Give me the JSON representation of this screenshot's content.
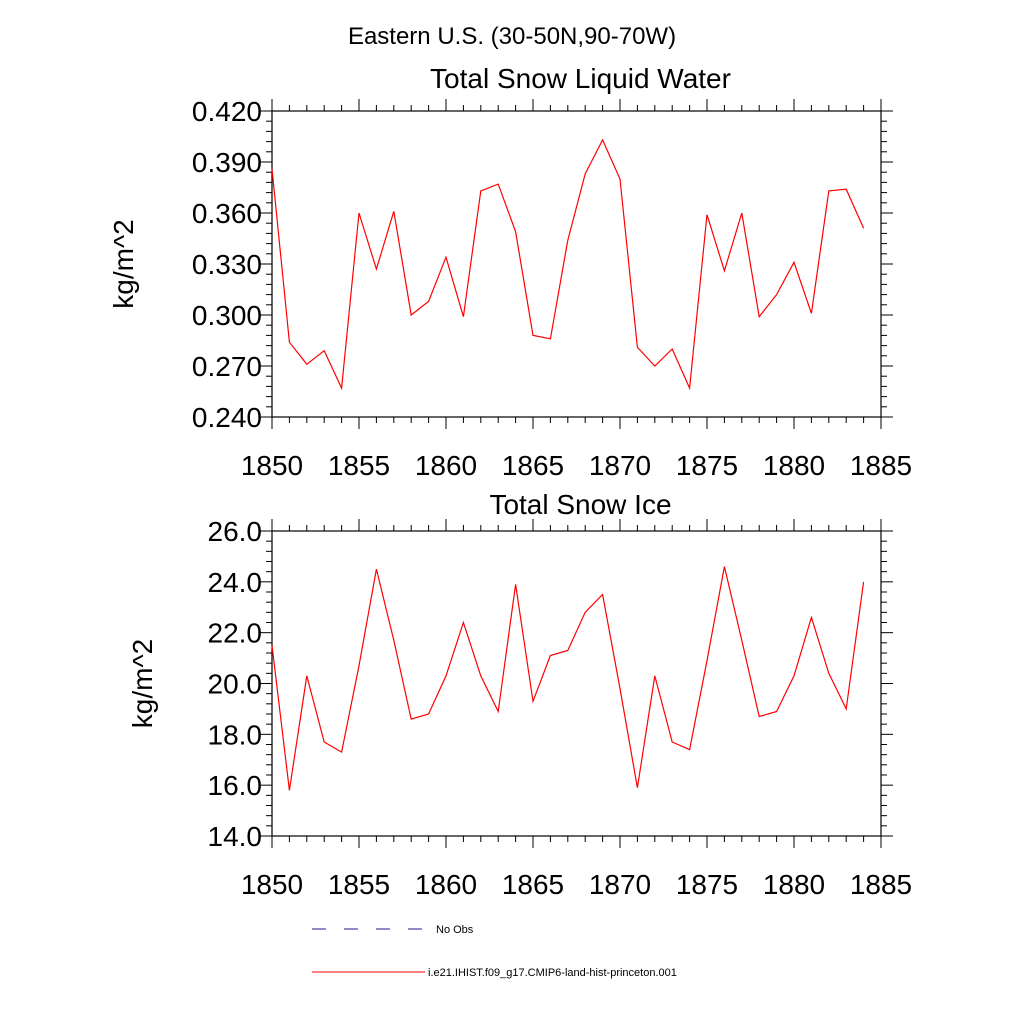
{
  "figure_title": "Eastern U.S. (30-50N,90-70W)",
  "legend": [
    {
      "label": "No Obs",
      "color": "#1a1a8c",
      "style": "dashed"
    },
    {
      "label": "i.e21.IHIST.f09_g17.CMIP6-land-hist-princeton.001",
      "color": "#ff0000",
      "style": "solid"
    }
  ],
  "chart_data": [
    {
      "type": "line",
      "title": "Total Snow Liquid Water",
      "xlabel": "",
      "ylabel": "kg/m^2",
      "xlim": [
        1850,
        1885
      ],
      "ylim": [
        0.24,
        0.42
      ],
      "x_ticks": [
        1850,
        1855,
        1860,
        1865,
        1870,
        1875,
        1880,
        1885
      ],
      "y_ticks": [
        "0.240",
        "0.270",
        "0.300",
        "0.330",
        "0.360",
        "0.390",
        "0.420"
      ],
      "grid": false,
      "series": [
        {
          "color": "#ff0000",
          "x": [
            1850,
            1851,
            1852,
            1853,
            1854,
            1855,
            1856,
            1857,
            1858,
            1859,
            1860,
            1861,
            1862,
            1863,
            1864,
            1865,
            1866,
            1867,
            1868,
            1869,
            1870,
            1871,
            1872,
            1873,
            1874,
            1875,
            1876,
            1877,
            1878,
            1879,
            1880,
            1881,
            1882,
            1883,
            1884
          ],
          "values": [
            0.386,
            0.284,
            0.271,
            0.279,
            0.257,
            0.36,
            0.327,
            0.361,
            0.3,
            0.308,
            0.334,
            0.299,
            0.373,
            0.377,
            0.349,
            0.288,
            0.286,
            0.344,
            0.383,
            0.403,
            0.38,
            0.281,
            0.27,
            0.28,
            0.257,
            0.359,
            0.326,
            0.36,
            0.299,
            0.312,
            0.331,
            0.301,
            0.373,
            0.374,
            0.351
          ]
        }
      ]
    },
    {
      "type": "line",
      "title": "Total Snow Ice",
      "xlabel": "",
      "ylabel": "kg/m^2",
      "xlim": [
        1850,
        1885
      ],
      "ylim": [
        14.0,
        26.0
      ],
      "x_ticks": [
        1850,
        1855,
        1860,
        1865,
        1870,
        1875,
        1880,
        1885
      ],
      "y_ticks": [
        "14.0",
        "16.0",
        "18.0",
        "20.0",
        "22.0",
        "24.0",
        "26.0"
      ],
      "grid": false,
      "series": [
        {
          "color": "#ff0000",
          "x": [
            1850,
            1851,
            1852,
            1853,
            1854,
            1855,
            1856,
            1857,
            1858,
            1859,
            1860,
            1861,
            1862,
            1863,
            1864,
            1865,
            1866,
            1867,
            1868,
            1869,
            1870,
            1871,
            1872,
            1873,
            1874,
            1875,
            1876,
            1877,
            1878,
            1879,
            1880,
            1881,
            1882,
            1883,
            1884
          ],
          "values": [
            21.5,
            15.8,
            20.3,
            17.7,
            17.3,
            20.7,
            24.5,
            21.7,
            18.6,
            18.8,
            20.3,
            22.4,
            20.3,
            18.9,
            23.9,
            19.3,
            21.1,
            21.3,
            22.8,
            23.5,
            19.8,
            15.9,
            20.3,
            17.7,
            17.4,
            20.9,
            24.6,
            21.7,
            18.7,
            18.9,
            20.3,
            22.6,
            20.4,
            19.0,
            24.0
          ]
        }
      ]
    }
  ]
}
